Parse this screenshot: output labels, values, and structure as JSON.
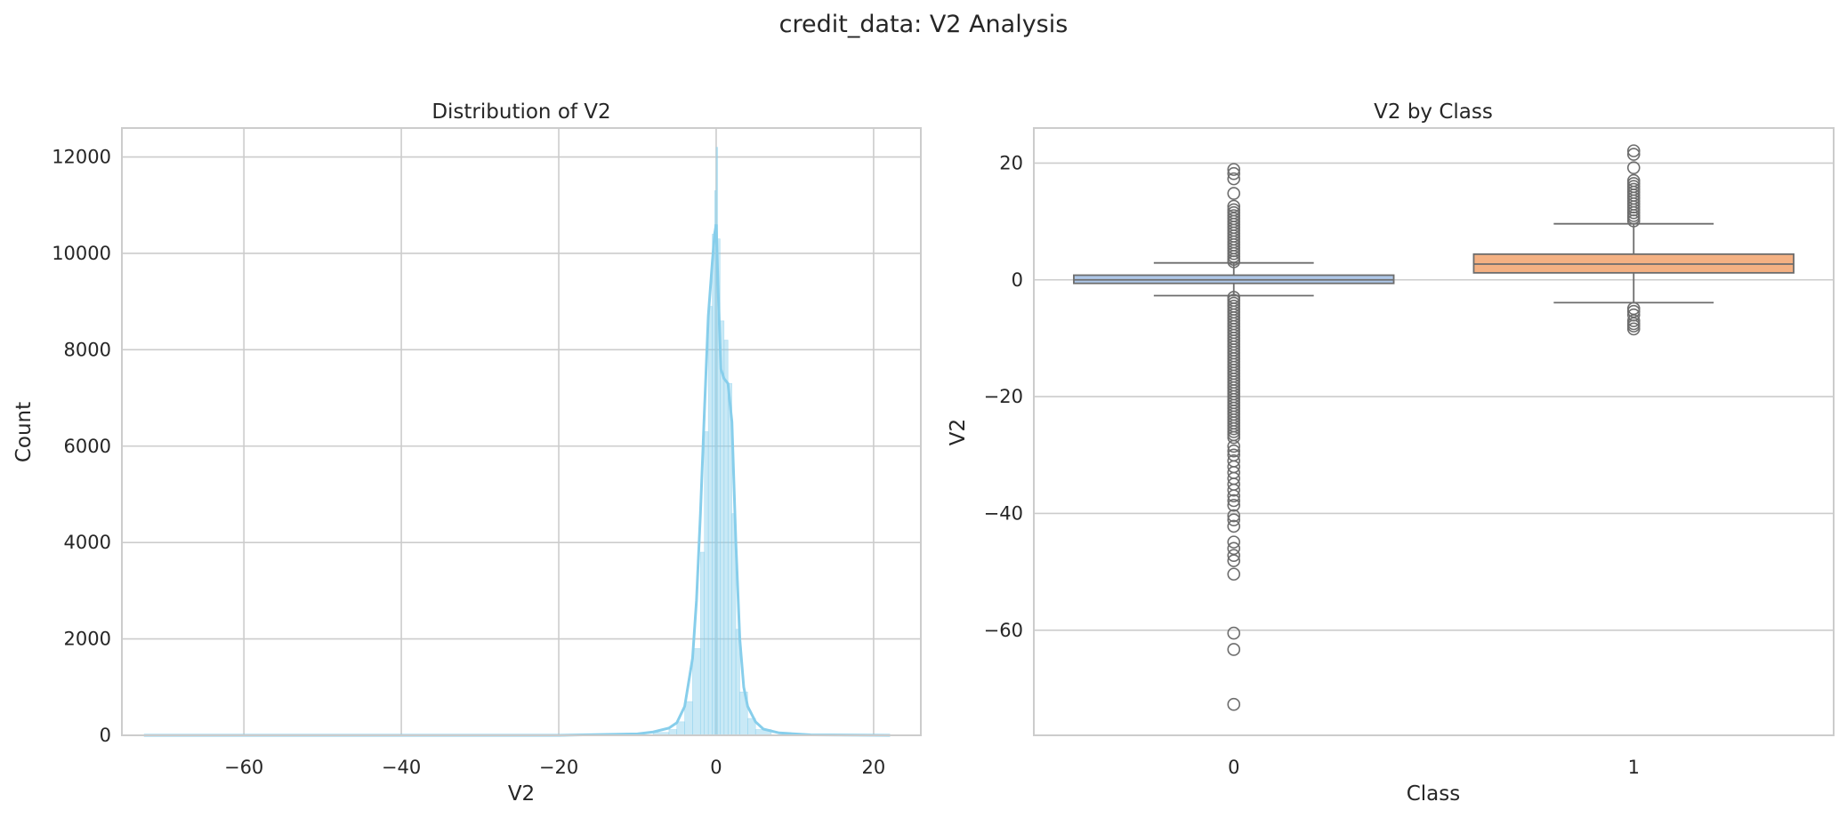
{
  "figure": {
    "title": "credit_data: V2 Analysis",
    "colors": {
      "hist": "#87ceeb",
      "box_class0": "#aec7e8",
      "box_class1": "#f4b183",
      "box_line": "#6d6d6d",
      "grid": "#cccccc"
    }
  },
  "chart_data": [
    {
      "type": "histogram",
      "title": "Distribution of V2",
      "xlabel": "V2",
      "ylabel": "Count",
      "xlim": [
        -75.5,
        26
      ],
      "ylim": [
        0,
        12600
      ],
      "xticks": [
        -60,
        -40,
        -20,
        0,
        20
      ],
      "yticks": [
        0,
        2000,
        4000,
        6000,
        8000,
        10000,
        12000
      ],
      "grid": true,
      "kde": true,
      "bins": [
        [
          -72.7,
          -8,
          10
        ],
        [
          -8,
          -6,
          60
        ],
        [
          -6,
          -5,
          120
        ],
        [
          -5,
          -4,
          280
        ],
        [
          -4,
          -3,
          700
        ],
        [
          -3,
          -2,
          1800
        ],
        [
          -2,
          -1.5,
          3800
        ],
        [
          -1.5,
          -1,
          6300
        ],
        [
          -1,
          -0.5,
          8900
        ],
        [
          -0.5,
          -0.2,
          10400
        ],
        [
          -0.2,
          0.0,
          11300
        ],
        [
          0.0,
          0.2,
          12200
        ],
        [
          0.2,
          0.5,
          10300
        ],
        [
          0.5,
          1.0,
          8600
        ],
        [
          1.0,
          1.5,
          8200
        ],
        [
          1.5,
          2.0,
          7300
        ],
        [
          2.0,
          2.5,
          4600
        ],
        [
          2.5,
          3.0,
          2200
        ],
        [
          3.0,
          4.0,
          900
        ],
        [
          4.0,
          5.0,
          350
        ],
        [
          5.0,
          7.0,
          120
        ],
        [
          7.0,
          22.1,
          10
        ]
      ],
      "kde_curve": [
        [
          -72.7,
          0
        ],
        [
          -20,
          0
        ],
        [
          -10,
          30
        ],
        [
          -8,
          70
        ],
        [
          -6,
          150
        ],
        [
          -5,
          260
        ],
        [
          -4,
          600
        ],
        [
          -3,
          1600
        ],
        [
          -2.5,
          2800
        ],
        [
          -2,
          4600
        ],
        [
          -1.5,
          6700
        ],
        [
          -1,
          8700
        ],
        [
          -0.5,
          9800
        ],
        [
          -0.2,
          10400
        ],
        [
          0,
          10600
        ],
        [
          0.3,
          9000
        ],
        [
          0.6,
          7600
        ],
        [
          1.0,
          7400
        ],
        [
          1.5,
          7300
        ],
        [
          2.0,
          6500
        ],
        [
          2.5,
          4000
        ],
        [
          3.0,
          2000
        ],
        [
          3.5,
          1000
        ],
        [
          4.0,
          600
        ],
        [
          5.0,
          280
        ],
        [
          6.0,
          130
        ],
        [
          8.0,
          50
        ],
        [
          12,
          10
        ],
        [
          22.1,
          0
        ]
      ]
    },
    {
      "type": "box",
      "title": "V2 by Class",
      "xlabel": "Class",
      "ylabel": "V2",
      "categories": [
        "0",
        "1"
      ],
      "ylim": [
        -78,
        26
      ],
      "yticks": [
        -60,
        -40,
        -20,
        0,
        20
      ],
      "grid": true,
      "boxes": [
        {
          "category": "0",
          "q1": -0.6,
          "median": 0.0,
          "q3": 0.8,
          "whisker_low": -2.7,
          "whisker_high": 2.9,
          "outliers": [
            18.9,
            18.2,
            17.3,
            14.8,
            12.6,
            12.0,
            11.5,
            11.0,
            10.5,
            10.0,
            9.5,
            9.0,
            8.5,
            8.0,
            7.5,
            7.0,
            6.5,
            6.0,
            5.5,
            5.0,
            4.5,
            4.0,
            3.5,
            3.1,
            -3.0,
            -3.5,
            -4.0,
            -4.5,
            -5.0,
            -5.5,
            -6.0,
            -6.5,
            -7.0,
            -7.5,
            -8.0,
            -8.5,
            -9.0,
            -9.5,
            -10.0,
            -10.5,
            -11.0,
            -11.5,
            -12.0,
            -12.5,
            -13.0,
            -13.5,
            -14.0,
            -14.5,
            -15.0,
            -15.5,
            -16.0,
            -16.5,
            -17.0,
            -17.5,
            -18.0,
            -18.5,
            -19.0,
            -19.5,
            -20.0,
            -20.5,
            -21.0,
            -21.5,
            -22.0,
            -22.5,
            -23.0,
            -23.5,
            -24.0,
            -24.5,
            -25.0,
            -25.5,
            -26.0,
            -26.5,
            -27.0,
            -28.5,
            -29.3,
            -30.0,
            -31.0,
            -32.0,
            -33.0,
            -34.0,
            -35.0,
            -36.0,
            -37.0,
            -37.8,
            -38.6,
            -40.4,
            -41.1,
            -42.2,
            -44.9,
            -46.0,
            -47.2,
            -48.1,
            -50.4,
            -60.5,
            -63.3,
            -72.7
          ]
        },
        {
          "category": "1",
          "q1": 1.2,
          "median": 2.7,
          "q3": 4.4,
          "whisker_low": -3.9,
          "whisker_high": 9.6,
          "outliers": [
            22.1,
            21.5,
            19.2,
            17.0,
            16.5,
            16.0,
            15.5,
            15.0,
            14.5,
            14.0,
            13.5,
            13.0,
            12.5,
            12.0,
            11.5,
            11.0,
            10.6,
            10.1,
            -4.9,
            -5.4,
            -6.0,
            -7.0,
            -7.5,
            -7.9,
            -8.4
          ]
        }
      ]
    }
  ]
}
